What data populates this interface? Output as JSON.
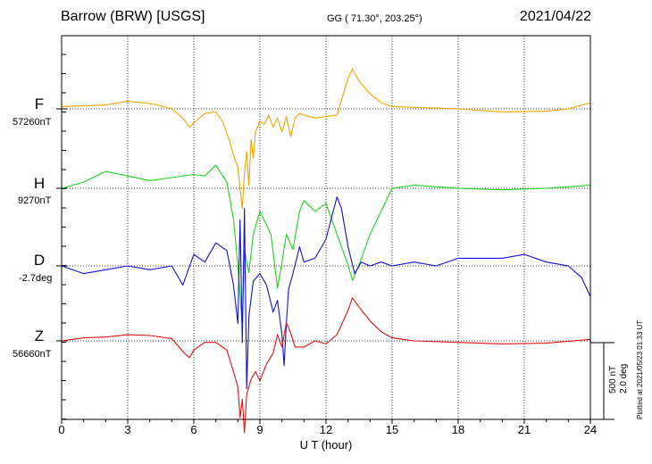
{
  "header": {
    "station": "Barrow (BRW)  [USGS]",
    "coords": "GG ( 71.30°, 203.25°)",
    "date": "2021/04/22"
  },
  "footer": {
    "plotted": "Plotted at 2021/05/23 01:33 UT",
    "scale_nt": "500 nT",
    "scale_deg": "2.0 deg"
  },
  "colors": {
    "F": "#f5a300",
    "H": "#1ed21e",
    "D": "#1010d8",
    "Z": "#e01010",
    "grid": "#000000"
  },
  "chart_data": {
    "type": "line",
    "title": "Barrow (BRW)  [USGS]",
    "xlabel": "U T (hour)",
    "ylabel": "",
    "xlim": [
      0,
      24
    ],
    "xticks": [
      "0",
      "3",
      "6",
      "9",
      "12",
      "15",
      "18",
      "21",
      "24"
    ],
    "grid": true,
    "scale_bar": {
      "nT": 500,
      "deg": 2.0
    },
    "series": [
      {
        "name": "F",
        "baseline_label": "57260nT",
        "unit": "nT",
        "x": [
          0,
          1,
          2,
          3,
          4,
          4.5,
          5,
          5.5,
          5.8,
          6,
          6.5,
          7,
          7.3,
          7.6,
          7.8,
          8,
          8.1,
          8.2,
          8.3,
          8.4,
          8.5,
          8.6,
          8.7,
          8.8,
          9,
          9.2,
          9.4,
          9.6,
          9.8,
          10,
          10.2,
          10.4,
          10.6,
          10.8,
          11,
          11.5,
          12,
          12.5,
          13,
          13.2,
          13.5,
          14,
          14.5,
          15,
          16,
          18,
          20,
          22,
          23,
          24
        ],
        "values": [
          15,
          20,
          25,
          50,
          35,
          20,
          0,
          -60,
          -120,
          -90,
          -30,
          -20,
          -80,
          -200,
          -300,
          -380,
          -520,
          -650,
          -420,
          -280,
          -500,
          -200,
          -320,
          -150,
          -80,
          -100,
          -40,
          -120,
          -60,
          -150,
          -50,
          -180,
          -60,
          -30,
          -40,
          -60,
          -50,
          -40,
          200,
          260,
          180,
          100,
          40,
          15,
          10,
          0,
          -20,
          -15,
          0,
          40
        ]
      },
      {
        "name": "H",
        "baseline_label": "9270nT",
        "unit": "nT",
        "x": [
          0,
          1,
          2,
          3,
          4,
          5,
          6,
          6.5,
          7,
          7.5,
          7.8,
          8,
          8.2,
          8.3,
          8.5,
          8.7,
          9,
          9.5,
          9.8,
          10,
          10.2,
          10.5,
          10.8,
          11,
          11.5,
          12,
          12.5,
          13,
          13.2,
          13.5,
          14,
          14.5,
          15,
          16,
          18,
          20,
          22,
          24
        ],
        "values": [
          0,
          40,
          110,
          80,
          50,
          70,
          90,
          80,
          150,
          40,
          -200,
          -500,
          -900,
          -400,
          -550,
          -300,
          -150,
          -300,
          -650,
          -480,
          -300,
          -400,
          -150,
          -80,
          -150,
          -100,
          -300,
          -500,
          -600,
          -500,
          -300,
          -150,
          0,
          20,
          0,
          -10,
          0,
          20
        ]
      },
      {
        "name": "D",
        "baseline_label": "-2.7deg",
        "unit": "deg",
        "x": [
          0,
          1,
          2,
          3,
          4,
          5,
          5.5,
          6,
          6.5,
          7,
          7.5,
          7.8,
          8,
          8.1,
          8.2,
          8.3,
          8.4,
          8.5,
          8.7,
          9,
          9.3,
          9.6,
          9.8,
          10,
          10.1,
          10.2,
          10.3,
          10.5,
          10.8,
          11,
          11.5,
          12,
          12.5,
          12.7,
          13,
          13.3,
          13.6,
          14,
          14.5,
          15,
          16,
          17,
          18,
          20,
          21,
          22,
          23,
          23.6,
          24
        ],
        "values": [
          0.0,
          -0.2,
          -0.1,
          0.0,
          -0.1,
          0.0,
          -0.5,
          0.3,
          0.1,
          0.6,
          0.4,
          -0.5,
          -1.5,
          1.2,
          -2.0,
          1.5,
          -3.2,
          -1.3,
          -0.4,
          -0.2,
          -0.5,
          -1.2,
          -0.9,
          -1.8,
          -2.6,
          -1.5,
          -0.6,
          -0.2,
          0.5,
          0.1,
          0.2,
          0.7,
          1.8,
          1.5,
          0.5,
          -0.2,
          0.1,
          0.0,
          0.1,
          0.0,
          0.1,
          0.0,
          0.2,
          0.2,
          0.3,
          0.1,
          0.0,
          -0.3,
          -0.8
        ]
      },
      {
        "name": "Z",
        "baseline_label": "56660nT",
        "unit": "nT",
        "x": [
          0,
          1,
          2,
          3,
          4,
          5,
          5.5,
          5.8,
          6,
          6.5,
          7,
          7.5,
          7.8,
          8,
          8.1,
          8.2,
          8.3,
          8.4,
          8.6,
          8.8,
          9,
          9.3,
          9.6,
          9.8,
          10,
          10.2,
          10.4,
          10.6,
          11,
          11.5,
          12,
          12.5,
          13,
          13.2,
          13.5,
          14,
          14.5,
          15,
          16,
          18,
          20,
          22,
          24
        ],
        "values": [
          0,
          20,
          25,
          40,
          35,
          15,
          -70,
          -110,
          -60,
          -10,
          -10,
          -60,
          -200,
          -300,
          -500,
          -380,
          -600,
          -350,
          -250,
          -200,
          -260,
          -150,
          -80,
          40,
          -40,
          120,
          50,
          -40,
          -40,
          0,
          -20,
          40,
          200,
          280,
          220,
          130,
          60,
          20,
          0,
          -10,
          -20,
          -15,
          10
        ]
      }
    ]
  }
}
